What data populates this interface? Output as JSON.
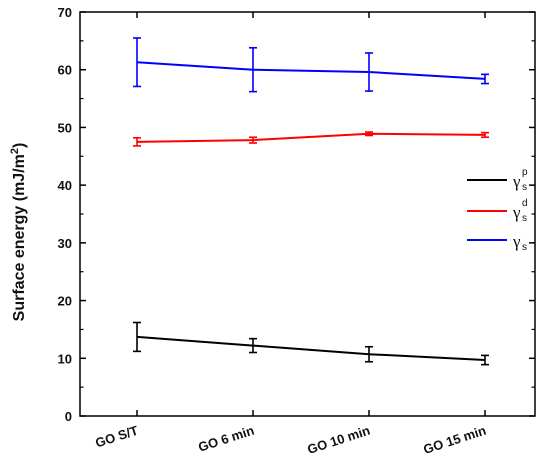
{
  "chart_data": {
    "type": "line",
    "categories": [
      "GO S/T",
      "GO 6 min",
      "GO 10 min",
      "GO 15 min"
    ],
    "ylabel": {
      "main": "Surface energy (mJ/m",
      "sup": "2",
      "close": ")"
    },
    "ylim": [
      0,
      70
    ],
    "yticks": [
      "0",
      "10",
      "20",
      "30",
      "40",
      "50",
      "60",
      "70"
    ],
    "grid": false,
    "legend_position": "right",
    "series": [
      {
        "name": {
          "base": "γ",
          "sub": "s",
          "sup": "p"
        },
        "color": "#000000",
        "values": [
          13.7,
          12.2,
          10.7,
          9.7
        ],
        "errors": [
          2.5,
          1.2,
          1.3,
          0.8
        ]
      },
      {
        "name": {
          "base": "γ",
          "sub": "s",
          "sup": "d"
        },
        "color": "#ff0000",
        "values": [
          47.5,
          47.8,
          48.9,
          48.7
        ],
        "errors": [
          0.7,
          0.5,
          0.3,
          0.4
        ]
      },
      {
        "name": {
          "base": "γ",
          "sub": "s",
          "sup": ""
        },
        "color": "#0000ff",
        "values": [
          61.3,
          60.0,
          59.6,
          58.4
        ],
        "errors": [
          4.2,
          3.8,
          3.3,
          0.8
        ]
      }
    ]
  }
}
